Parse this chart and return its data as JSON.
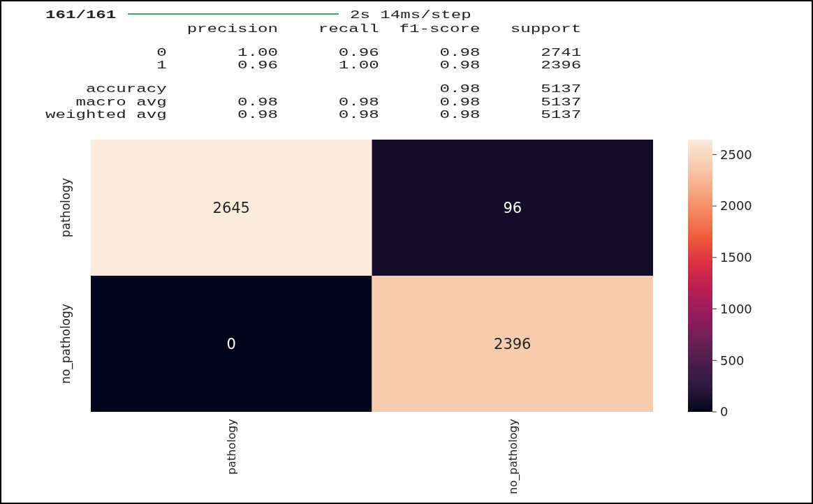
{
  "chart_data": {
    "type": "heatmap",
    "annotations": [
      "161/161",
      "2s 14ms/step",
      "              precision    recall  f1-score   support",
      "           0       1.00      0.96      0.98      2741",
      "           1       0.96      1.00      0.98      2396",
      "    accuracy                           0.98      5137",
      "   macro avg       0.98      0.98      0.98      5137",
      "weighted avg       0.98      0.98      0.98      5137"
    ],
    "categories": [
      "pathology",
      "no_pathology"
    ],
    "y_categories": [
      "pathology",
      "no_pathology"
    ],
    "cells": [
      [
        2645,
        96
      ],
      [
        0,
        2396
      ]
    ],
    "data_labels": true,
    "clim": [
      0,
      2645
    ],
    "cticks": [
      0,
      500,
      1000,
      1500,
      2000,
      2500
    ]
  }
}
